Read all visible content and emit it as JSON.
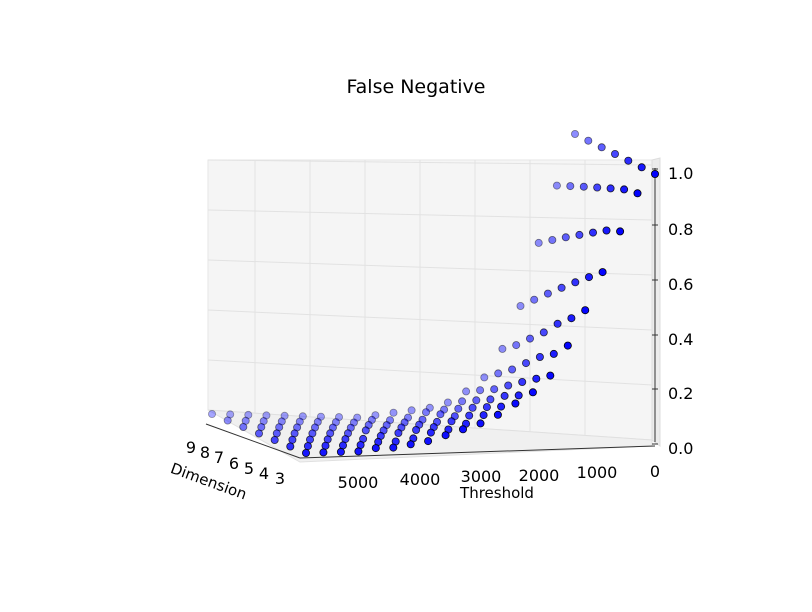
{
  "chart_data": {
    "type": "scatter",
    "projection": "3d",
    "title": "False Negative",
    "xlabel": "Dimension",
    "ylabel": "Threshold",
    "zlabel": "",
    "x_ticks": [
      "3",
      "4",
      "5",
      "6",
      "7",
      "8",
      "9"
    ],
    "y_ticks": [
      "0",
      "1000",
      "2000",
      "3000",
      "4000",
      "5000"
    ],
    "z_ticks": [
      "0.0",
      "0.2",
      "0.4",
      "0.6",
      "0.8",
      "1.0"
    ],
    "xlim": [
      3,
      9
    ],
    "ylim": [
      0,
      5500
    ],
    "zlim": [
      0,
      1
    ],
    "grid": true,
    "marker_color": "#0000ff",
    "dimensions": [
      3,
      4,
      5,
      6,
      7,
      8,
      9
    ],
    "thresholds": [
      0,
      250,
      500,
      750,
      1000,
      1250,
      1500,
      1750,
      2000,
      2250,
      2500,
      2750,
      3000,
      3250,
      3500,
      3750,
      4000,
      4250,
      4500,
      4750,
      5000
    ],
    "points": [
      {
        "dimension": 3,
        "values": [
          1.0,
          0.93,
          0.79,
          0.64,
          0.5,
          0.37,
          0.26,
          0.2,
          0.16,
          0.12,
          0.09,
          0.07,
          0.05,
          0.03,
          0.02,
          0.01,
          0.01,
          0.0,
          0.0,
          0.0,
          0.0
        ]
      },
      {
        "dimension": 4,
        "values": [
          1.0,
          0.92,
          0.77,
          0.6,
          0.45,
          0.32,
          0.23,
          0.17,
          0.13,
          0.1,
          0.07,
          0.05,
          0.04,
          0.02,
          0.01,
          0.01,
          0.0,
          0.0,
          0.0,
          0.0,
          0.0
        ]
      },
      {
        "dimension": 5,
        "values": [
          1.0,
          0.9,
          0.74,
          0.56,
          0.41,
          0.29,
          0.2,
          0.15,
          0.11,
          0.08,
          0.06,
          0.04,
          0.03,
          0.02,
          0.01,
          0.0,
          0.0,
          0.0,
          0.0,
          0.0,
          0.0
        ]
      },
      {
        "dimension": 6,
        "values": [
          1.0,
          0.88,
          0.71,
          0.52,
          0.36,
          0.25,
          0.17,
          0.12,
          0.09,
          0.06,
          0.04,
          0.03,
          0.02,
          0.01,
          0.01,
          0.0,
          0.0,
          0.0,
          0.0,
          0.0,
          0.0
        ]
      },
      {
        "dimension": 7,
        "values": [
          1.0,
          0.86,
          0.68,
          0.48,
          0.32,
          0.21,
          0.14,
          0.1,
          0.07,
          0.05,
          0.03,
          0.02,
          0.01,
          0.01,
          0.0,
          0.0,
          0.0,
          0.0,
          0.0,
          0.0,
          0.0
        ]
      },
      {
        "dimension": 8,
        "values": [
          1.0,
          0.84,
          0.65,
          0.44,
          0.28,
          0.18,
          0.12,
          0.08,
          0.05,
          0.04,
          0.02,
          0.01,
          0.01,
          0.0,
          0.0,
          0.0,
          0.0,
          0.0,
          0.0,
          0.0,
          0.0
        ]
      },
      {
        "dimension": 9,
        "values": [
          1.0,
          0.82,
          0.62,
          0.4,
          0.25,
          0.15,
          0.1,
          0.06,
          0.04,
          0.03,
          0.02,
          0.01,
          0.0,
          0.0,
          0.0,
          0.0,
          0.0,
          0.0,
          0.0,
          0.0,
          0.0
        ]
      }
    ]
  }
}
